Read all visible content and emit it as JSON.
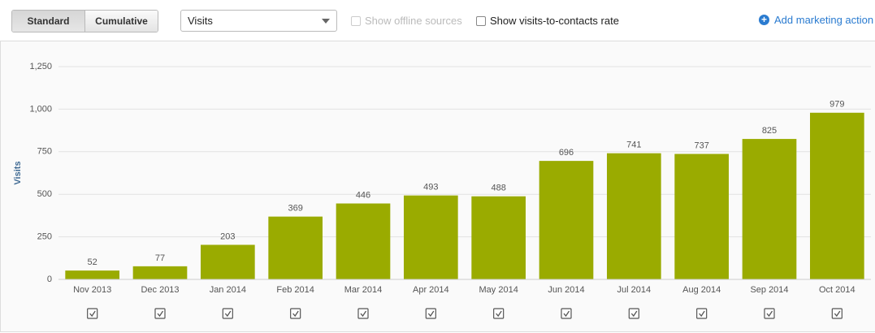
{
  "toolbar": {
    "mode_buttons": [
      "Standard",
      "Cumulative"
    ],
    "metric_select": "Visits",
    "offline_checkbox": "Show offline sources",
    "rate_checkbox": "Show visits-to-contacts rate",
    "add_action": "Add marketing action"
  },
  "chart_data": {
    "type": "bar",
    "y_label": "Visits",
    "categories": [
      "Nov 2013",
      "Dec 2013",
      "Jan 2014",
      "Feb 2014",
      "Mar 2014",
      "Apr 2014",
      "May 2014",
      "Jun 2014",
      "Jul 2014",
      "Aug 2014",
      "Sep 2014",
      "Oct 2014"
    ],
    "values": [
      52,
      77,
      203,
      369,
      446,
      493,
      488,
      696,
      741,
      737,
      825,
      979
    ],
    "color": "#9aab00",
    "ylim": [
      0,
      1250
    ],
    "yticks": [
      0,
      250,
      500,
      750,
      {
        "value": 1000,
        "label": "1,000"
      },
      {
        "value": 1250,
        "label": "1,250"
      }
    ],
    "grid": true
  }
}
